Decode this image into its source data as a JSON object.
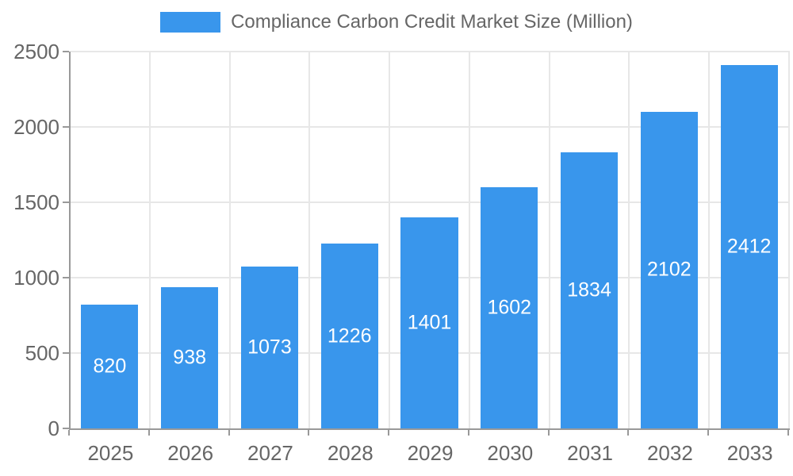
{
  "chart_data": {
    "type": "bar",
    "title": "Compliance Carbon Credit Market Size (Million)",
    "legend_position": "top",
    "categories": [
      "2025",
      "2026",
      "2027",
      "2028",
      "2029",
      "2030",
      "2031",
      "2032",
      "2033"
    ],
    "values": [
      820,
      938,
      1073,
      1226,
      1401,
      1602,
      1834,
      2102,
      2412
    ],
    "series": [
      {
        "name": "Compliance Carbon Credit Market Size (Million)",
        "values": [
          820,
          938,
          1073,
          1226,
          1401,
          1602,
          1834,
          2102,
          2412
        ]
      }
    ],
    "xlabel": "",
    "ylabel": "",
    "ylim": [
      0,
      2500
    ],
    "yticks": [
      0,
      500,
      1000,
      1500,
      2000,
      2500
    ],
    "grid": true,
    "bar_labels_inside": true,
    "colors": {
      "bar": "#3996EC",
      "axis_line": "#999999",
      "grid_line": "#E7E7E7",
      "text": "#666666",
      "bar_label": "#FFFFFF",
      "background": "#FFFFFF"
    }
  }
}
